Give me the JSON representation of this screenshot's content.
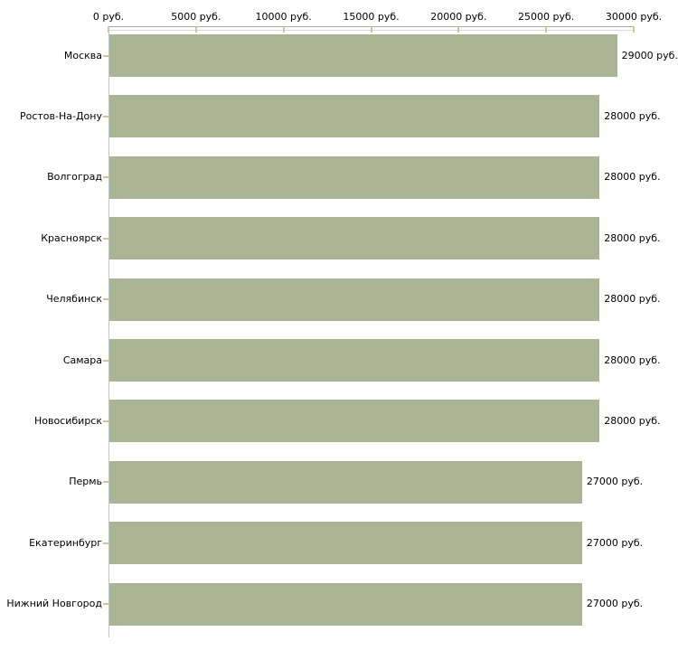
{
  "chart_data": {
    "type": "bar",
    "orientation": "horizontal",
    "title": "",
    "xlabel": "",
    "ylabel": "",
    "unit": "руб.",
    "categories": [
      "Москва",
      "Ростов-На-Дону",
      "Волгоград",
      "Красноярск",
      "Челябинск",
      "Самара",
      "Новосибирск",
      "Пермь",
      "Екатеринбург",
      "Нижний Новгород"
    ],
    "values": [
      29000,
      28000,
      28000,
      28000,
      28000,
      28000,
      28000,
      27000,
      27000,
      27000
    ],
    "value_labels": [
      "29000 руб.",
      "28000 руб.",
      "28000 руб.",
      "28000 руб.",
      "28000 руб.",
      "28000 руб.",
      "28000 руб.",
      "27000 руб.",
      "27000 руб.",
      "27000 руб."
    ],
    "x_axis": {
      "position": "top",
      "min": 0,
      "max": 30000,
      "tick_values": [
        0,
        5000,
        10000,
        15000,
        20000,
        25000,
        30000
      ],
      "tick_labels": [
        "0 руб.",
        "5000 руб.",
        "10000 руб.",
        "15000 руб.",
        "20000 руб.",
        "25000 руб.",
        "30000 руб."
      ]
    },
    "legend": {
      "visible": false
    },
    "grid": false,
    "colors": {
      "bar_fill": "#acb496",
      "axis_line": "#ababab",
      "axis_line_shadow": "#dcdcdc",
      "tick_mark": "#c6ca9e",
      "category_axis_line": "#c4c4c4",
      "text": "#000000",
      "background": "#ffffff"
    }
  }
}
